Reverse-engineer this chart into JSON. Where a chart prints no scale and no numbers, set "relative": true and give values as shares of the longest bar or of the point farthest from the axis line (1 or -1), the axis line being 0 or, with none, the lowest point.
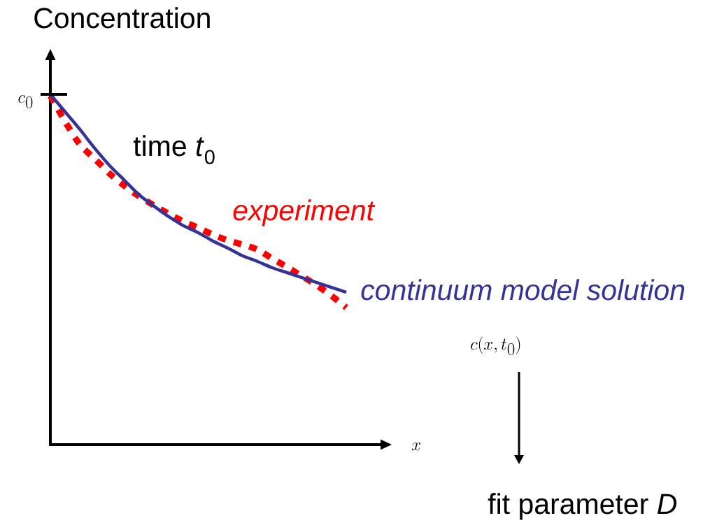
{
  "chart_data": {
    "type": "line",
    "relative": true,
    "ylabel": "Concentration",
    "categories": [
      null,
      null,
      null,
      null,
      null,
      null,
      null,
      null,
      null,
      null,
      null,
      null,
      null,
      null,
      null,
      null,
      null,
      null,
      null,
      null,
      null
    ],
    "series": [
      {
        "name": "experiment",
        "color": "#ff0000",
        "line_style": "dotted",
        "values": [
          0.996,
          0.922,
          0.856,
          0.816,
          0.774,
          0.739,
          0.709,
          0.683,
          0.659,
          0.637,
          0.619,
          0.599,
          0.583,
          0.571,
          0.557,
          0.531,
          0.507,
          0.481,
          0.455,
          0.425,
          0.391
        ]
      },
      {
        "name": "continuum model solution",
        "color": "#333399",
        "line_style": "solid",
        "values": [
          1.0,
          0.95,
          0.9,
          0.846,
          0.797,
          0.755,
          0.713,
          0.681,
          0.651,
          0.625,
          0.605,
          0.581,
          0.561,
          0.539,
          0.523,
          0.505,
          0.491,
          0.477,
          0.463,
          0.449,
          0.435
        ]
      }
    ],
    "annotations": [
      "c_0",
      "time *t*$_{0}$",
      "c(x,t_0)",
      "x",
      "fit parameter *D*"
    ]
  }
}
